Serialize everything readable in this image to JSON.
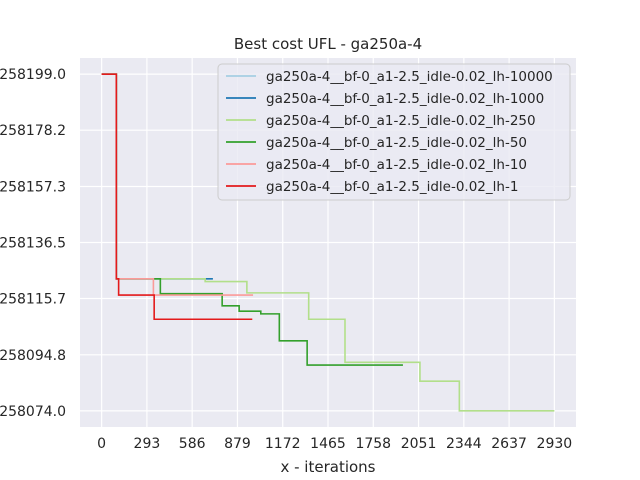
{
  "chart_data": {
    "type": "line",
    "title": "Best cost UFL - ga250a-4",
    "xlabel": "x - iterations",
    "ylabel": "",
    "xlim": [
      -140,
      3070
    ],
    "ylim": [
      258068.0,
      258205.0
    ],
    "x_ticks": [
      0,
      293,
      586,
      879,
      1172,
      1465,
      1758,
      2051,
      2344,
      2637,
      2930
    ],
    "y_ticks": [
      258199.0,
      258178.2,
      258157.3,
      258136.5,
      258115.7,
      258094.8,
      258074.0
    ],
    "y_tick_labels": [
      "258199.0",
      "258178.2",
      "258157.3",
      "258136.5",
      "258115.7",
      "258094.8",
      "258074.0"
    ],
    "grid": true,
    "legend_position": "upper right",
    "step": "post",
    "series": [
      {
        "name": "ga250a-4__bf-0_a1-2.5_idle-0.02_lh-10000",
        "color": "#a6cee3",
        "points": [
          [
            0,
            258199.0
          ],
          [
            95,
            258199.0
          ],
          [
            95,
            258123.0
          ],
          [
            720,
            258123.0
          ]
        ]
      },
      {
        "name": "ga250a-4__bf-0_a1-2.5_idle-0.02_lh-1000",
        "color": "#1f78b4",
        "points": [
          [
            0,
            258199.0
          ],
          [
            95,
            258199.0
          ],
          [
            95,
            258123.0
          ],
          [
            720,
            258123.0
          ]
        ]
      },
      {
        "name": "ga250a-4__bf-0_a1-2.5_idle-0.02_lh-250",
        "color": "#b2df8a",
        "points": [
          [
            0,
            258199.0
          ],
          [
            95,
            258199.0
          ],
          [
            95,
            258123.0
          ],
          [
            670,
            258123.0
          ],
          [
            670,
            258122.0
          ],
          [
            940,
            258122.0
          ],
          [
            940,
            258117.8
          ],
          [
            1340,
            258117.8
          ],
          [
            1340,
            258108.0
          ],
          [
            1575,
            258108.0
          ],
          [
            1575,
            258092.0
          ],
          [
            2060,
            258092.0
          ],
          [
            2060,
            258085.0
          ],
          [
            2315,
            258085.0
          ],
          [
            2315,
            258074.0
          ],
          [
            2930,
            258074.0
          ]
        ]
      },
      {
        "name": "ga250a-4__bf-0_a1-2.5_idle-0.02_lh-50",
        "color": "#33a02c",
        "points": [
          [
            0,
            258199.0
          ],
          [
            95,
            258199.0
          ],
          [
            95,
            258123.0
          ],
          [
            380,
            258123.0
          ],
          [
            380,
            258117.5
          ],
          [
            780,
            258117.5
          ],
          [
            780,
            258113.0
          ],
          [
            890,
            258113.0
          ],
          [
            890,
            258111.0
          ],
          [
            1030,
            258111.0
          ],
          [
            1030,
            258110.0
          ],
          [
            1150,
            258110.0
          ],
          [
            1150,
            258100.0
          ],
          [
            1330,
            258100.0
          ],
          [
            1330,
            258091.0
          ],
          [
            1950,
            258091.0
          ]
        ]
      },
      {
        "name": "ga250a-4__bf-0_a1-2.5_idle-0.02_lh-10",
        "color": "#fb9a99",
        "points": [
          [
            0,
            258199.0
          ],
          [
            95,
            258199.0
          ],
          [
            95,
            258123.0
          ],
          [
            335,
            258123.0
          ],
          [
            335,
            258117.0
          ],
          [
            980,
            258117.0
          ]
        ]
      },
      {
        "name": "ga250a-4__bf-0_a1-2.5_idle-0.02_lh-1",
        "color": "#e31a1c",
        "points": [
          [
            0,
            258199.0
          ],
          [
            95,
            258199.0
          ],
          [
            95,
            258123.0
          ],
          [
            110,
            258123.0
          ],
          [
            110,
            258117.0
          ],
          [
            340,
            258117.0
          ],
          [
            340,
            258108.0
          ],
          [
            975,
            258108.0
          ]
        ]
      }
    ]
  }
}
